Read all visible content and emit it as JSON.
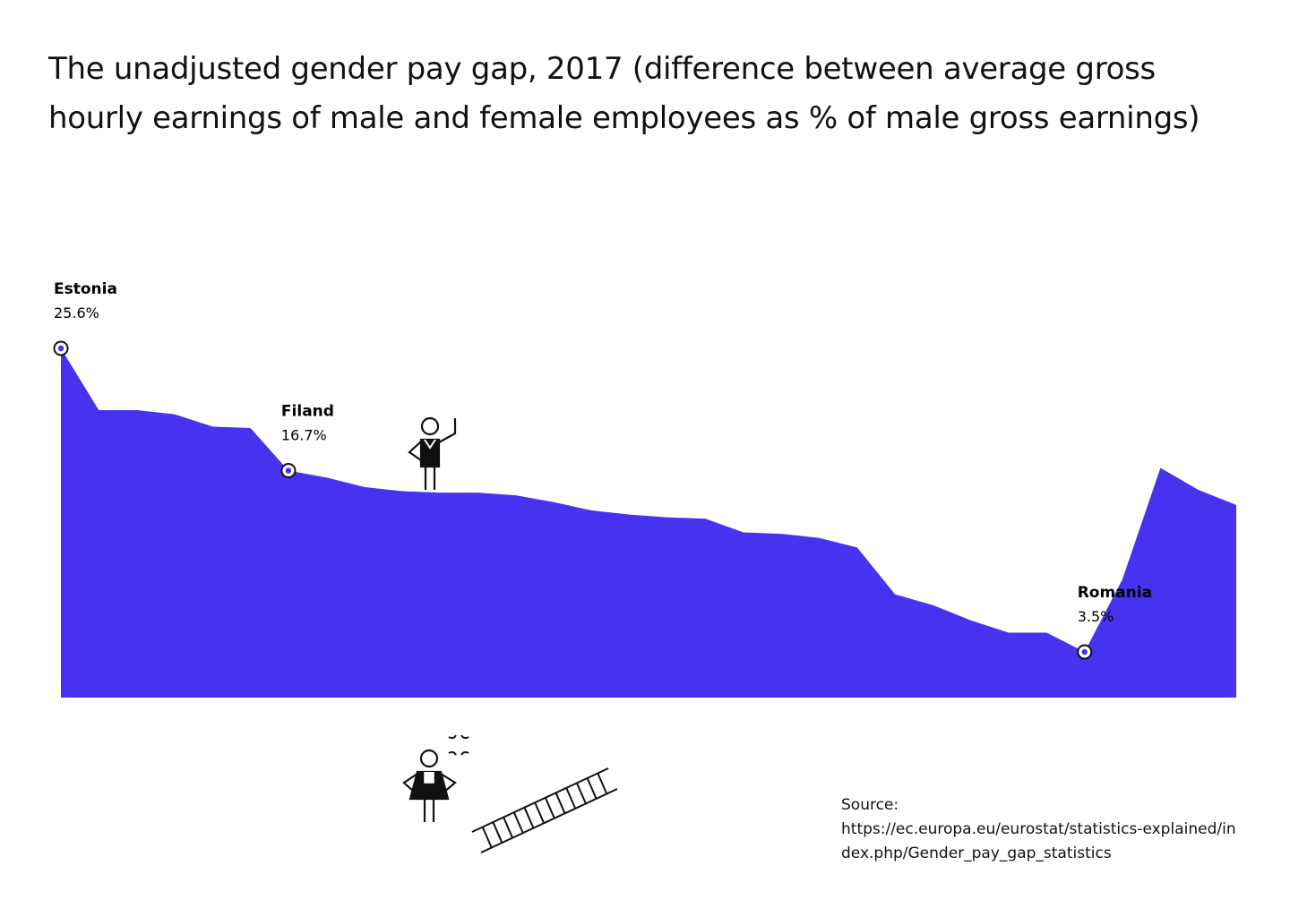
{
  "chart_data": {
    "type": "area",
    "title": "The unadjusted gender pay gap, 2017 (difference between average gross hourly earnings of male and female employees as % of male gross earnings)",
    "xlabel": "",
    "ylabel": "",
    "grid": false,
    "legend": "none",
    "ylim": [
      0,
      28
    ],
    "values": [
      25.6,
      21.1,
      21.1,
      20.8,
      19.9,
      19.8,
      16.7,
      16.2,
      15.5,
      15.2,
      15.1,
      15.1,
      14.9,
      14.4,
      13.8,
      13.5,
      13.3,
      13.2,
      12.2,
      12.1,
      11.8,
      11.1,
      7.7,
      6.9,
      5.8,
      4.9,
      4.9,
      3.5,
      8.8,
      16.9,
      15.3,
      14.2
    ],
    "series_color": "#4632ef",
    "annotations": [
      {
        "index": 0,
        "label": "Estonia",
        "value_text": "25.6%"
      },
      {
        "index": 6,
        "label": "Filand",
        "value_text": "16.7%"
      },
      {
        "index": 27,
        "label": "Romania",
        "value_text": "3.5%"
      }
    ]
  },
  "source": {
    "label": "Source:",
    "url": "https://ec.europa.eu/eurostat/statistics-explained/index.php/Gender_pay_gap_statistics"
  },
  "icons": {
    "man_figure": "man-waving-icon",
    "woman_figure": "woman-frustrated-icon",
    "ladder": "ladder-icon",
    "anger": "anger-symbol-icon"
  }
}
